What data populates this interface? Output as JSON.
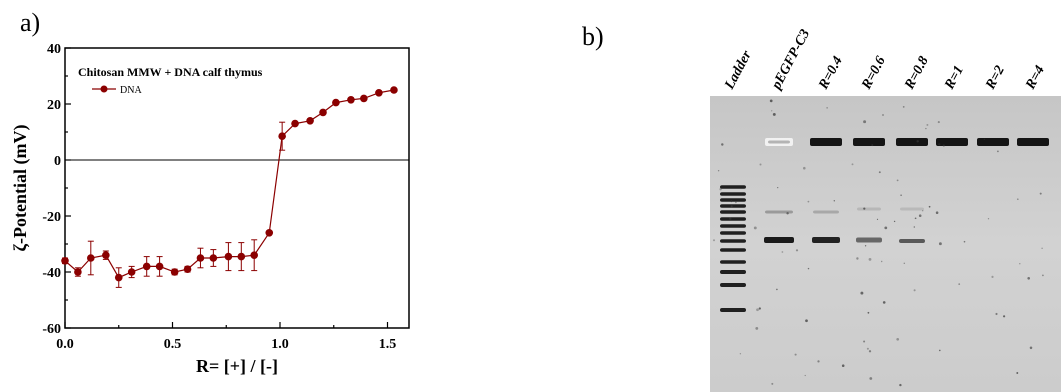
{
  "panels": {
    "a": {
      "label": "a)"
    },
    "b": {
      "label": "b)"
    }
  },
  "chart_data": {
    "type": "line",
    "title": "Chitosan MMW + DNA calf thymus",
    "xlabel": "R= [+] / [-]",
    "ylabel": "ζ-Potential (mV)",
    "xlim": [
      0.0,
      1.6
    ],
    "ylim": [
      -60,
      40
    ],
    "x_ticks": [
      "0.0",
      "0.5",
      "1.0",
      "1.5"
    ],
    "y_ticks": [
      "-60",
      "-40",
      "-20",
      "0",
      "20",
      "40"
    ],
    "zero_line": true,
    "grid": false,
    "legend_position": "top-left",
    "series": [
      {
        "name": "DNA",
        "color": "#8b0000",
        "x": [
          0.0,
          0.06,
          0.12,
          0.19,
          0.25,
          0.31,
          0.38,
          0.44,
          0.51,
          0.57,
          0.63,
          0.69,
          0.76,
          0.82,
          0.88,
          0.95,
          1.01,
          1.07,
          1.14,
          1.2,
          1.26,
          1.33,
          1.39,
          1.46,
          1.53
        ],
        "y": [
          -36,
          -40,
          -35,
          -34,
          -42,
          -40,
          -38,
          -38,
          -40,
          -39,
          -35,
          -35,
          -34.5,
          -34.5,
          -34,
          -26,
          8.5,
          13,
          14,
          17,
          20.5,
          21.5,
          22,
          24,
          25
        ],
        "err": [
          1,
          1.5,
          6,
          1.5,
          3.5,
          2,
          3.5,
          3.5,
          1,
          1,
          3.5,
          3,
          5,
          5,
          5.5,
          0,
          5,
          0,
          0,
          0,
          0,
          0,
          0,
          0,
          0
        ]
      }
    ]
  },
  "gel": {
    "lanes": [
      "Ladder",
      "pEGFP-C3",
      "R=0.4",
      "R=0.6",
      "R=0.8",
      "R=1",
      "R=2",
      "R=4"
    ],
    "ladder_band_count": 14
  }
}
